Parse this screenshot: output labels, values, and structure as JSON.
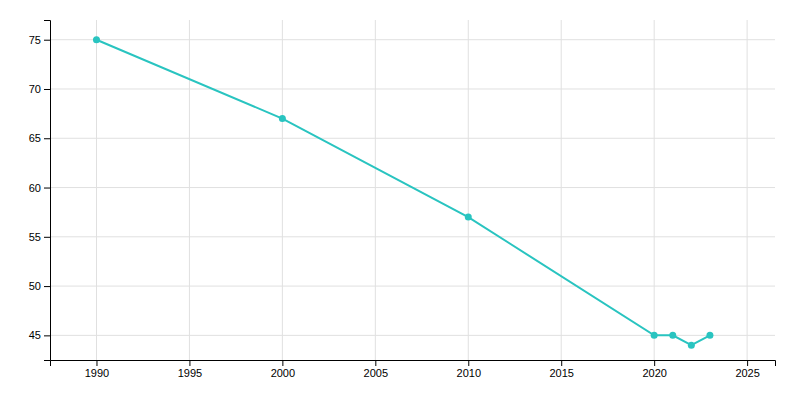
{
  "chart_data": {
    "type": "line",
    "x": [
      1990,
      2000,
      2010,
      2020,
      2021,
      2022,
      2023
    ],
    "values": [
      75,
      67,
      57,
      45,
      45,
      44,
      45
    ],
    "color": "#29c4c0",
    "marker": "circle",
    "xlim": [
      1987.5,
      2026.5
    ],
    "ylim": [
      42.5,
      77
    ],
    "xticks": [
      1990,
      1995,
      2000,
      2005,
      2010,
      2015,
      2020,
      2025
    ],
    "yticks": [
      45,
      50,
      55,
      60,
      65,
      70,
      75
    ],
    "grid": true
  }
}
